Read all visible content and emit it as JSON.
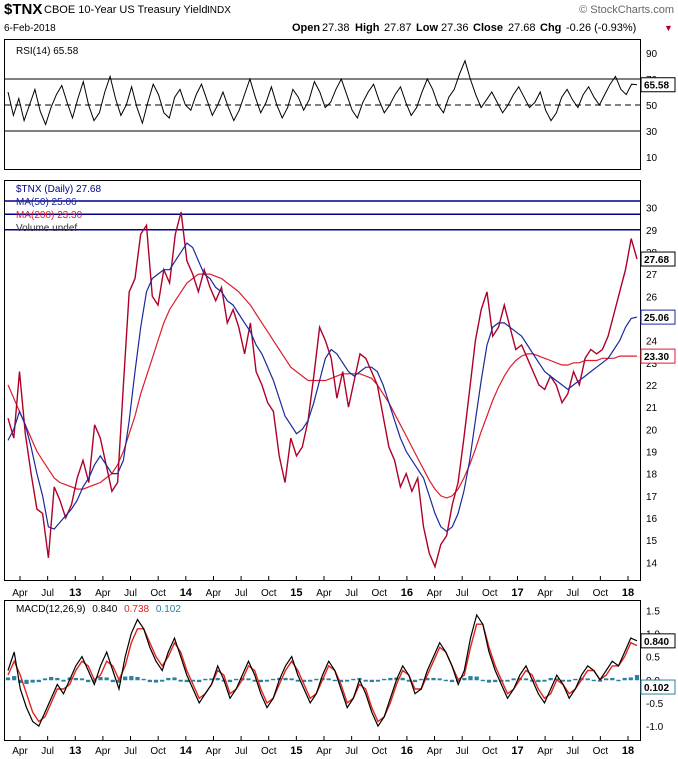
{
  "header": {
    "symbol": "$TNX",
    "name": "CBOE 10-Year US Treasury Yield",
    "exchange": "INDX",
    "watermark": "© StockCharts.com",
    "date": "6-Feb-2018",
    "open_label": "Open",
    "open": "27.38",
    "high_label": "High",
    "high": "27.87",
    "low_label": "Low",
    "low": "27.36",
    "close_label": "Close",
    "close": "27.68",
    "chg_label": "Chg",
    "chg": "-0.26 (-0.93%)",
    "chg_arrow": "▼"
  },
  "colors": {
    "price": "#b0002a",
    "ma50": "#1a2a9a",
    "ma200": "#dd1c2c",
    "macd_signal": "#e0241c",
    "macd_hist": "#2c7fa0",
    "blue_rule": "#00008b",
    "axis_text": "#000000"
  },
  "chart_data": [
    {
      "type": "line",
      "panel": "rsi",
      "legend": "RSI(14) 65.58",
      "current_value_label": "65.58",
      "yticks": [
        "90",
        "70",
        "50",
        "30",
        "10"
      ],
      "ylim": [
        0,
        100
      ],
      "reference_lines": [
        70,
        50,
        30
      ],
      "series": [
        {
          "name": "RSI(14)",
          "values": [
            60,
            42,
            55,
            38,
            50,
            62,
            45,
            35,
            48,
            58,
            65,
            52,
            40,
            55,
            68,
            50,
            38,
            44,
            60,
            72,
            55,
            42,
            50,
            64,
            48,
            36,
            52,
            66,
            58,
            44,
            40,
            56,
            62,
            50,
            46,
            58,
            66,
            54,
            42,
            50,
            60,
            48,
            38,
            46,
            58,
            70,
            56,
            44,
            52,
            64,
            50,
            40,
            48,
            62,
            56,
            46,
            54,
            68,
            60,
            48,
            52,
            62,
            70,
            58,
            46,
            40,
            52,
            60,
            66,
            54,
            44,
            50,
            58,
            64,
            52,
            42,
            48,
            60,
            70,
            62,
            50,
            44,
            56,
            62,
            74,
            84,
            70,
            58,
            48,
            54,
            60,
            52,
            44,
            50,
            58,
            64,
            56,
            48,
            52,
            60,
            46,
            38,
            44,
            56,
            62,
            54,
            48,
            58,
            64,
            56,
            50,
            58,
            66,
            72,
            62,
            58,
            66,
            65.58
          ]
        }
      ]
    },
    {
      "type": "line",
      "panel": "price",
      "legend": [
        "$TNX (Daily) 27.68",
        "MA(50) 25.06",
        "MA(200) 23.30",
        "Volume undef"
      ],
      "current_labels": {
        "price": "27.68",
        "ma50": "25.06",
        "ma200": "23.30"
      },
      "yticks": [
        "30",
        "29",
        "28",
        "27",
        "26",
        "25",
        "24",
        "23",
        "22",
        "21",
        "20",
        "19",
        "18",
        "17",
        "16",
        "15",
        "14"
      ],
      "ylim": [
        13.2,
        31.2
      ],
      "reference_lines": [
        30.3,
        29.7,
        29.0
      ],
      "x_ticks": [
        "Apr",
        "Jul",
        "13",
        "Apr",
        "Jul",
        "Oct",
        "14",
        "Apr",
        "Jul",
        "Oct",
        "15",
        "Apr",
        "Jul",
        "Oct",
        "16",
        "Apr",
        "Jul",
        "Oct",
        "17",
        "Apr",
        "Jul",
        "Oct",
        "18"
      ],
      "series": [
        {
          "name": "$TNX (Daily)",
          "values": [
            20.5,
            19.6,
            22.6,
            19.8,
            18.0,
            16.4,
            16.2,
            14.2,
            17.4,
            16.8,
            16.0,
            16.6,
            17.8,
            18.6,
            17.6,
            20.2,
            19.6,
            18.4,
            17.2,
            17.6,
            22.0,
            26.2,
            26.8,
            28.8,
            29.2,
            26.0,
            25.6,
            27.2,
            26.6,
            28.8,
            29.8,
            27.6,
            27.0,
            26.2,
            27.2,
            26.4,
            25.8,
            26.4,
            24.8,
            25.4,
            24.6,
            23.4,
            24.8,
            22.6,
            22.0,
            21.2,
            20.8,
            18.8,
            17.6,
            19.6,
            18.8,
            19.2,
            20.4,
            22.4,
            24.6,
            24.0,
            23.2,
            21.4,
            22.6,
            21.0,
            22.2,
            23.4,
            23.2,
            22.6,
            22.0,
            20.6,
            19.2,
            18.6,
            17.4,
            18.0,
            17.2,
            17.8,
            15.6,
            14.4,
            13.8,
            14.8,
            15.2,
            16.6,
            17.6,
            19.6,
            21.8,
            24.0,
            25.4,
            26.2,
            24.2,
            24.6,
            25.6,
            24.6,
            23.6,
            23.8,
            23.2,
            22.6,
            22.0,
            21.8,
            22.4,
            22.0,
            21.2,
            21.6,
            22.6,
            22.0,
            23.2,
            23.6,
            23.4,
            23.6,
            24.2,
            25.2,
            26.2,
            27.2,
            28.6,
            27.68
          ]
        },
        {
          "name": "MA(50)",
          "values": [
            19.5,
            20.0,
            20.8,
            20.2,
            19.2,
            18.0,
            17.0,
            15.6,
            15.5,
            15.8,
            16.1,
            16.4,
            16.8,
            17.4,
            17.8,
            18.4,
            18.8,
            18.4,
            18.0,
            18.0,
            18.6,
            20.4,
            22.6,
            24.6,
            26.2,
            26.8,
            27.0,
            27.2,
            27.2,
            27.6,
            28.0,
            28.4,
            28.2,
            27.6,
            27.0,
            26.8,
            26.4,
            26.2,
            25.8,
            25.6,
            25.2,
            24.8,
            24.4,
            23.8,
            23.4,
            22.8,
            22.2,
            21.4,
            20.6,
            20.2,
            19.8,
            20.0,
            20.4,
            21.2,
            22.2,
            23.2,
            23.6,
            23.4,
            23.0,
            22.6,
            22.4,
            22.6,
            22.8,
            22.8,
            22.6,
            22.0,
            21.2,
            20.4,
            19.6,
            19.0,
            18.6,
            18.2,
            17.8,
            17.0,
            16.2,
            15.6,
            15.4,
            15.6,
            16.2,
            17.2,
            18.6,
            20.4,
            22.2,
            23.8,
            24.6,
            24.8,
            24.8,
            24.6,
            24.4,
            24.2,
            23.8,
            23.4,
            23.0,
            22.6,
            22.4,
            22.2,
            22.0,
            21.8,
            22.0,
            22.2,
            22.4,
            22.6,
            22.8,
            23.0,
            23.2,
            23.6,
            24.0,
            24.6,
            25.0,
            25.06
          ]
        },
        {
          "name": "MA(200)",
          "values": [
            22.0,
            21.4,
            20.8,
            20.2,
            19.6,
            19.0,
            18.6,
            18.2,
            17.8,
            17.6,
            17.5,
            17.4,
            17.3,
            17.3,
            17.4,
            17.5,
            17.6,
            17.8,
            18.0,
            18.4,
            19.0,
            19.8,
            20.6,
            21.6,
            22.4,
            23.2,
            24.0,
            24.8,
            25.4,
            25.8,
            26.2,
            26.6,
            26.8,
            27.0,
            27.0,
            27.0,
            26.9,
            26.8,
            26.6,
            26.4,
            26.2,
            25.9,
            25.6,
            25.2,
            24.8,
            24.4,
            24.0,
            23.6,
            23.2,
            22.8,
            22.6,
            22.4,
            22.2,
            22.2,
            22.2,
            22.2,
            22.3,
            22.4,
            22.5,
            22.5,
            22.5,
            22.5,
            22.4,
            22.3,
            22.0,
            21.6,
            21.2,
            20.7,
            20.2,
            19.7,
            19.2,
            18.7,
            18.2,
            17.7,
            17.3,
            17.0,
            16.9,
            17.0,
            17.3,
            17.8,
            18.4,
            19.1,
            19.9,
            20.6,
            21.3,
            21.9,
            22.4,
            22.8,
            23.1,
            23.3,
            23.4,
            23.4,
            23.3,
            23.2,
            23.1,
            23.0,
            22.9,
            22.9,
            23.0,
            23.0,
            23.1,
            23.1,
            23.1,
            23.2,
            23.2,
            23.2,
            23.3,
            23.3,
            23.3,
            23.3
          ]
        }
      ]
    },
    {
      "type": "line",
      "panel": "macd",
      "legend": {
        "name": "MACD(12,26,9)",
        "macd": "0.840",
        "signal": "0.738",
        "hist": "0.102"
      },
      "current_labels": {
        "macd": "0.840",
        "hist": "0.102"
      },
      "yticks": [
        "1.5",
        "1.0",
        "0.5",
        "0.0",
        "-0.5",
        "-1.0"
      ],
      "ylim": [
        -1.3,
        1.7
      ],
      "series": [
        {
          "name": "MACD",
          "values": [
            0.2,
            0.6,
            -0.2,
            -0.6,
            -0.9,
            -1.0,
            -0.7,
            -0.4,
            -0.1,
            -0.3,
            0.0,
            0.3,
            0.5,
            0.2,
            -0.1,
            0.3,
            0.6,
            0.2,
            -0.2,
            0.5,
            1.0,
            1.3,
            1.1,
            0.7,
            0.4,
            0.2,
            0.6,
            0.9,
            0.5,
            0.1,
            -0.2,
            -0.5,
            -0.3,
            -0.1,
            0.3,
            0.0,
            -0.4,
            -0.2,
            0.1,
            0.4,
            0.1,
            -0.3,
            -0.6,
            -0.4,
            0.0,
            0.3,
            0.5,
            0.1,
            -0.2,
            -0.5,
            -0.3,
            0.1,
            0.4,
            0.2,
            -0.2,
            -0.6,
            -0.4,
            0.0,
            -0.3,
            -0.7,
            -1.0,
            -0.8,
            -0.4,
            0.0,
            0.3,
            0.1,
            -0.3,
            -0.2,
            0.2,
            0.5,
            0.8,
            0.6,
            0.3,
            -0.1,
            0.2,
            0.9,
            1.4,
            1.2,
            0.6,
            0.2,
            -0.1,
            -0.4,
            -0.2,
            0.1,
            0.3,
            0.0,
            -0.3,
            -0.5,
            -0.2,
            0.1,
            -0.1,
            -0.4,
            -0.2,
            0.1,
            0.3,
            0.2,
            0.0,
            0.2,
            0.4,
            0.3,
            0.6,
            0.9,
            0.84
          ]
        },
        {
          "name": "Signal",
          "values": [
            0.1,
            0.4,
            0.1,
            -0.3,
            -0.7,
            -0.9,
            -0.8,
            -0.5,
            -0.2,
            -0.2,
            -0.1,
            0.2,
            0.4,
            0.3,
            0.0,
            0.1,
            0.4,
            0.3,
            0.0,
            0.3,
            0.8,
            1.1,
            1.1,
            0.8,
            0.5,
            0.3,
            0.5,
            0.8,
            0.6,
            0.2,
            -0.1,
            -0.4,
            -0.3,
            -0.1,
            0.2,
            0.1,
            -0.3,
            -0.2,
            0.0,
            0.3,
            0.2,
            -0.2,
            -0.5,
            -0.4,
            -0.1,
            0.2,
            0.4,
            0.2,
            -0.1,
            -0.4,
            -0.3,
            0.0,
            0.3,
            0.2,
            -0.1,
            -0.5,
            -0.4,
            -0.1,
            -0.2,
            -0.6,
            -0.9,
            -0.8,
            -0.5,
            -0.1,
            0.2,
            0.1,
            -0.2,
            -0.2,
            0.1,
            0.4,
            0.7,
            0.6,
            0.3,
            0.0,
            0.1,
            0.7,
            1.2,
            1.2,
            0.7,
            0.3,
            0.0,
            -0.3,
            -0.2,
            0.0,
            0.2,
            0.1,
            -0.2,
            -0.4,
            -0.3,
            0.0,
            -0.1,
            -0.3,
            -0.2,
            0.0,
            0.2,
            0.2,
            0.0,
            0.1,
            0.3,
            0.3,
            0.5,
            0.8,
            0.738
          ]
        },
        {
          "name": "Histogram",
          "values": [
            0.05,
            0.08,
            -0.06,
            -0.08,
            -0.05,
            -0.04,
            0.03,
            0.06,
            0.04,
            -0.03,
            0.05,
            0.04,
            0.03,
            -0.04,
            -0.03,
            0.06,
            0.05,
            -0.04,
            -0.05,
            0.07,
            0.08,
            0.06,
            0.02,
            -0.04,
            -0.05,
            -0.03,
            0.04,
            0.05,
            -0.03,
            -0.04,
            -0.03,
            -0.04,
            0.02,
            0.03,
            0.04,
            -0.03,
            -0.04,
            0.02,
            0.04,
            0.03,
            -0.03,
            -0.04,
            -0.03,
            0.02,
            0.04,
            0.04,
            0.03,
            -0.03,
            -0.04,
            -0.03,
            0.02,
            0.04,
            0.03,
            -0.02,
            -0.04,
            -0.03,
            0.02,
            0.04,
            -0.03,
            -0.04,
            -0.03,
            0.02,
            0.04,
            0.05,
            0.04,
            -0.03,
            -0.04,
            0.02,
            0.04,
            0.04,
            0.03,
            -0.02,
            -0.04,
            -0.03,
            0.04,
            0.08,
            0.07,
            -0.02,
            -0.05,
            -0.04,
            -0.03,
            -0.03,
            0.03,
            0.04,
            0.03,
            -0.03,
            -0.04,
            -0.03,
            0.04,
            0.03,
            -0.03,
            -0.03,
            0.02,
            0.04,
            0.03,
            -0.02,
            -0.03,
            0.03,
            0.04,
            -0.02,
            0.04,
            0.05,
            0.102
          ]
        }
      ],
      "x_ticks": [
        "Apr",
        "Jul",
        "13",
        "Apr",
        "Jul",
        "Oct",
        "14",
        "Apr",
        "Jul",
        "Oct",
        "15",
        "Apr",
        "Jul",
        "Oct",
        "16",
        "Apr",
        "Jul",
        "Oct",
        "17",
        "Apr",
        "Jul",
        "Oct",
        "18"
      ]
    }
  ]
}
